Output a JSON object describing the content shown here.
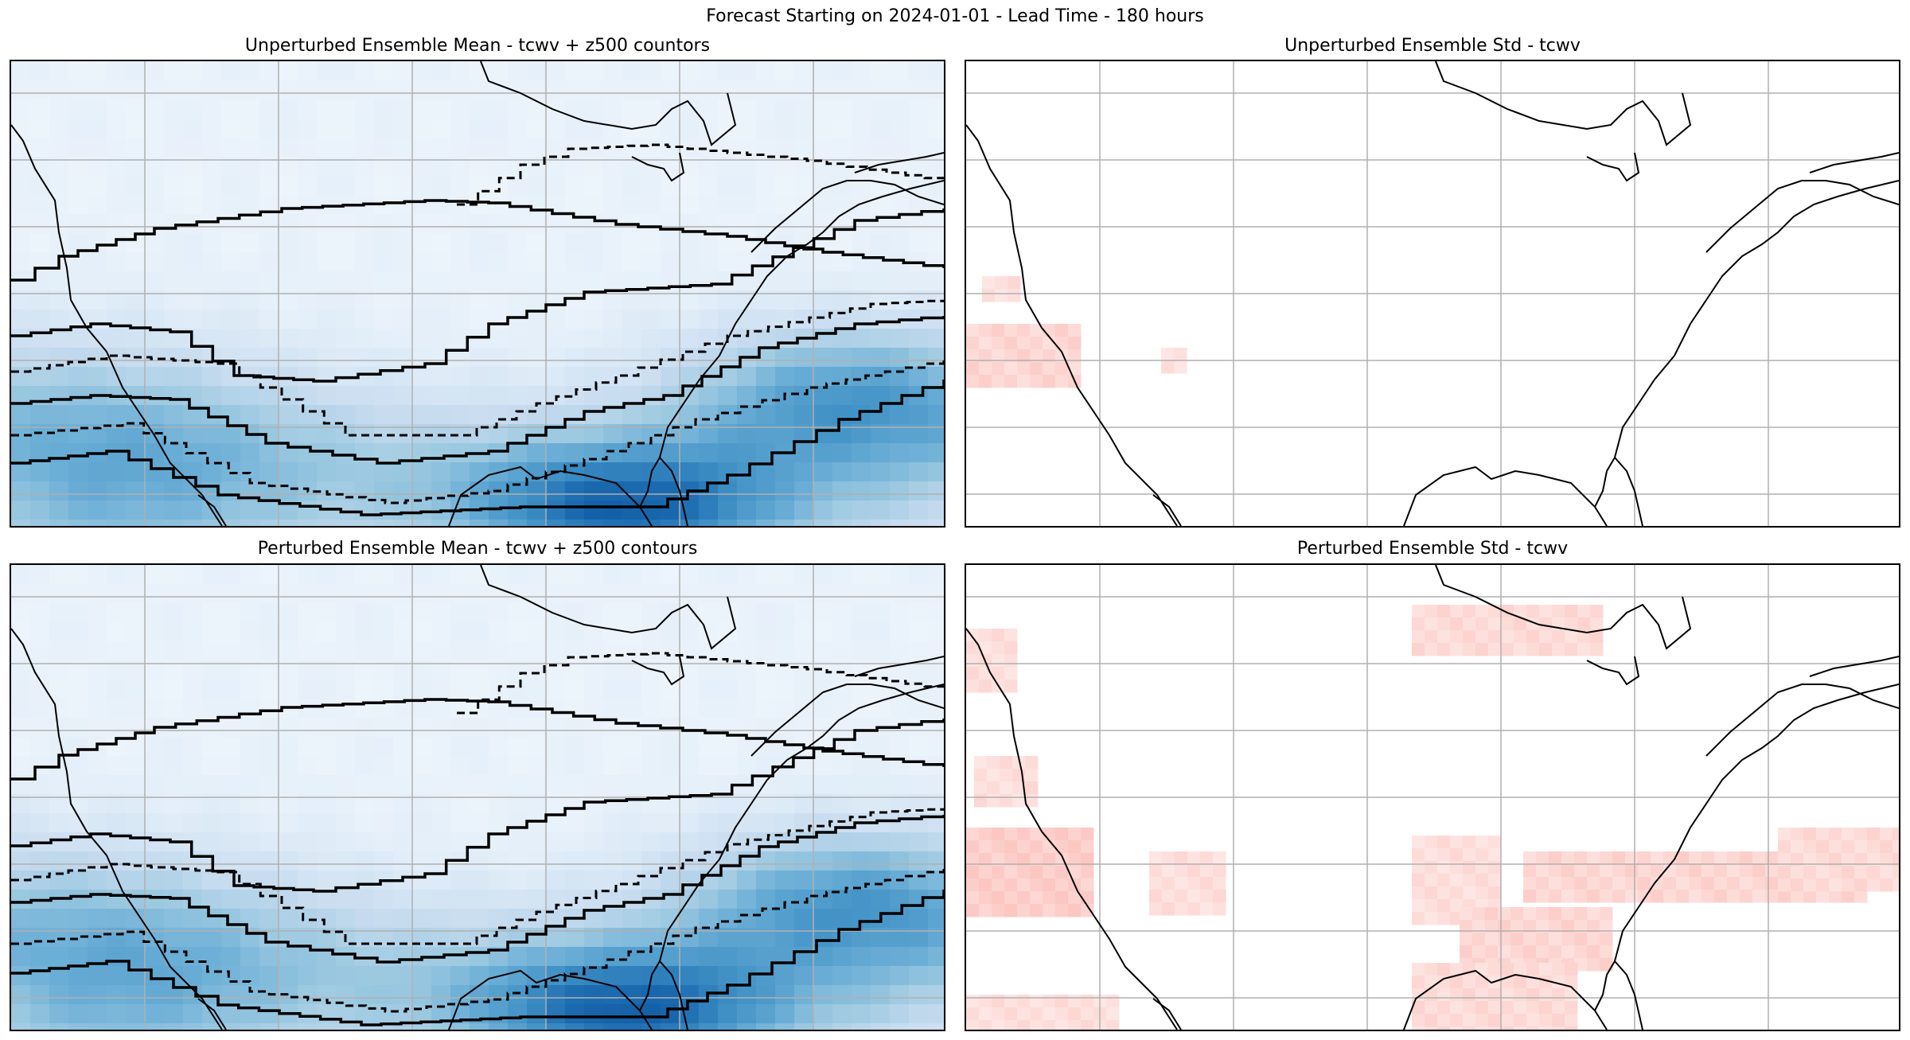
{
  "figure": {
    "suptitle": "Forecast Starting on 2024-01-01 - Lead Time - 180 hours"
  },
  "panels": [
    {
      "title": "Unperturbed Ensemble Mean - tcwv + z500 countors",
      "kind": "mean"
    },
    {
      "title": "Unperturbed Ensemble Std - tcwv",
      "kind": "std"
    },
    {
      "title": "Perturbed Ensemble Mean - tcwv + z500 contours",
      "kind": "mean"
    },
    {
      "title": "Perturbed Ensemble Std - tcwv",
      "kind": "std"
    }
  ],
  "colors": {
    "tcwv_cmap": [
      "#f7fbff",
      "#deebf7",
      "#c6dbef",
      "#9ecae1",
      "#6baed6",
      "#4292c6",
      "#2171b5",
      "#08519c"
    ],
    "std_cmap": [
      "#ffffff",
      "#fde0dd",
      "#fbb4ae"
    ],
    "gridline": "#b0b0b0",
    "coastline": "#000000",
    "contour": "#000000"
  }
}
